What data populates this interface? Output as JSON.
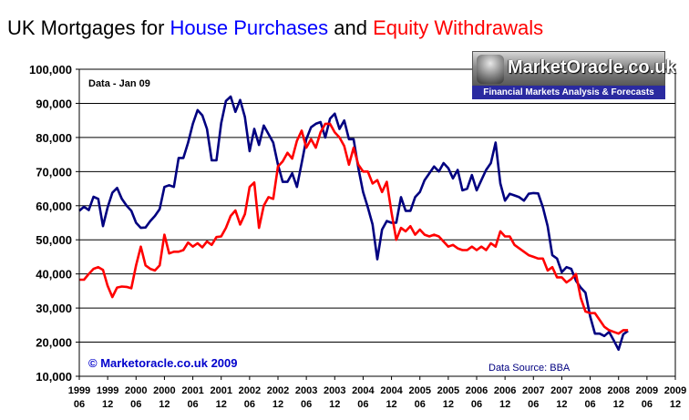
{
  "title": {
    "part1": "UK Mortgages for ",
    "part2": "House Purchases",
    "part3": " and ",
    "part4": "Equity Withdrawals"
  },
  "colors": {
    "house": "#000080",
    "equity": "#ff0000",
    "title_black": "#000000",
    "title_blue": "#0000ff",
    "title_red": "#ff0000",
    "source_text": "#000080",
    "copyright_text": "#0000cc"
  },
  "logo": {
    "brand": "MarketOracle.co.uk",
    "tagline": "Financial Markets Analysis & Forecasts"
  },
  "chart_data": {
    "type": "line",
    "annotation_data": "Data - Jan 09",
    "annotation_copyright": "© Marketoracle.co.uk  2009",
    "annotation_source": "Data Source: BBA",
    "ylim": [
      10000,
      100000
    ],
    "yticks": [
      "10,000",
      "20,000",
      "30,000",
      "40,000",
      "50,000",
      "60,000",
      "70,000",
      "80,000",
      "90,000",
      "100,000"
    ],
    "xaxis_years": [
      "1999",
      "1999",
      "2000",
      "2000",
      "2001",
      "2001",
      "2002",
      "2002",
      "2003",
      "2003",
      "2004",
      "2004",
      "2005",
      "2005",
      "2006",
      "2006",
      "2007",
      "2007",
      "2008",
      "2008",
      "2009",
      "2009"
    ],
    "xaxis_months": [
      "06",
      "12",
      "06",
      "12",
      "06",
      "12",
      "06",
      "12",
      "06",
      "12",
      "06",
      "12",
      "06",
      "12",
      "06",
      "12",
      "06",
      "12",
      "06",
      "12",
      "06",
      "12"
    ],
    "grid": "horizontal",
    "series": [
      {
        "name": "House Purchases",
        "values": [
          58500,
          59700,
          58700,
          62600,
          62000,
          54000,
          59500,
          63800,
          65200,
          62000,
          60000,
          58500,
          55000,
          53500,
          53600,
          55500,
          57000,
          59000,
          65500,
          66000,
          65500,
          74000,
          74000,
          78500,
          84000,
          88000,
          86500,
          82500,
          73300,
          73300,
          84200,
          90700,
          92000,
          87500,
          91000,
          86000,
          76000,
          82500,
          77800,
          83500,
          81000,
          78500,
          72000,
          67000,
          67000,
          69500,
          65500,
          72500,
          79500,
          83000,
          84000,
          84500,
          80000,
          85500,
          87000,
          82500,
          85000,
          79500,
          79500,
          71000,
          64000,
          59500,
          54500,
          44300,
          53000,
          55500,
          55000,
          55000,
          62500,
          58500,
          58500,
          62500,
          64000,
          67500,
          69500,
          71500,
          70000,
          72500,
          71000,
          68000,
          70500,
          64500,
          65000,
          69000,
          64500,
          67500,
          70500,
          72500,
          78500,
          66500,
          61500,
          63500,
          63000,
          62500,
          61500,
          63500,
          63700,
          63600,
          59500,
          54000,
          45500,
          44500,
          40500,
          42000,
          41500,
          38000,
          36000,
          34500,
          27500,
          22500,
          22500,
          21800,
          23000,
          20500,
          17800,
          22300,
          23300
        ],
        "color": "#000080"
      },
      {
        "name": "Equity Withdrawals",
        "values": [
          38300,
          38300,
          40000,
          41500,
          42000,
          41200,
          36500,
          33200,
          36000,
          36300,
          36200,
          35800,
          42500,
          48000,
          42500,
          41500,
          41000,
          42500,
          51500,
          46000,
          46500,
          46500,
          47000,
          49200,
          48000,
          49000,
          47800,
          49500,
          48500,
          50800,
          51000,
          53500,
          57000,
          58600,
          54500,
          57500,
          65500,
          66800,
          53500,
          60000,
          62500,
          62000,
          71500,
          73000,
          75500,
          73800,
          79000,
          82000,
          77000,
          79500,
          77000,
          81500,
          84000,
          84000,
          81500,
          80000,
          77500,
          72000,
          77000,
          72000,
          70000,
          70000,
          66500,
          67500,
          64000,
          67000,
          58000,
          50000,
          53500,
          52500,
          54000,
          51500,
          53000,
          51500,
          51000,
          51500,
          51000,
          49500,
          48000,
          48500,
          47500,
          47000,
          47000,
          48000,
          47000,
          48000,
          47000,
          49000,
          48000,
          52500,
          51000,
          51000,
          48500,
          47500,
          46500,
          45500,
          45000,
          44500,
          44500,
          41000,
          42000,
          39000,
          39000,
          37500,
          38500,
          40000,
          33000,
          29000,
          28500,
          28500,
          26500,
          24500,
          23500,
          23000,
          22500,
          23500,
          23500
        ],
        "color": "#ff0000"
      }
    ]
  }
}
